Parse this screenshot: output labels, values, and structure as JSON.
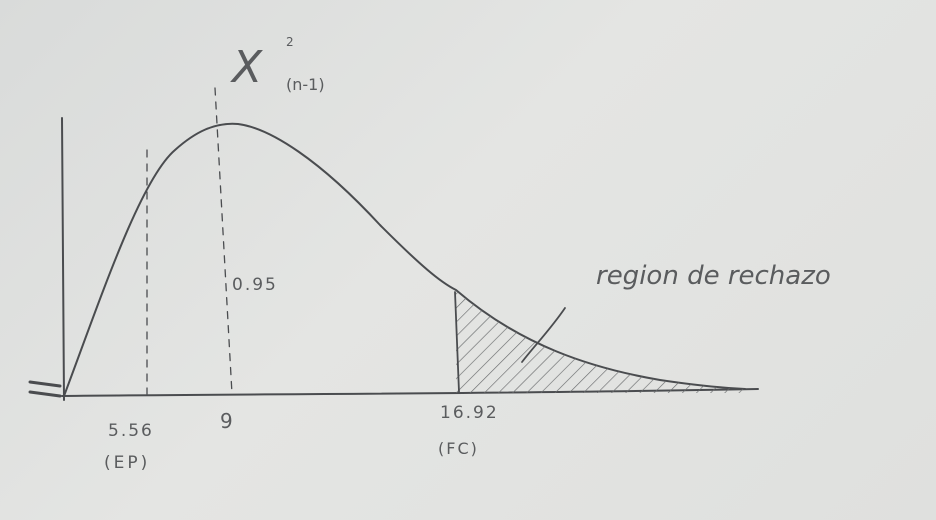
{
  "diagram": {
    "chi_symbol": "X",
    "chi_superscript": "2",
    "chi_subscript": "(n-1)",
    "area_label": "0.95",
    "region_label": "region de rechazo",
    "ticks": [
      {
        "value": "5.56",
        "note": "(EP)"
      },
      {
        "value": "9",
        "note": ""
      },
      {
        "value": "16.92",
        "note": "(FC)"
      }
    ]
  },
  "colors": {
    "paper": "#dfe0de",
    "pencil": "#4a4c4f"
  }
}
